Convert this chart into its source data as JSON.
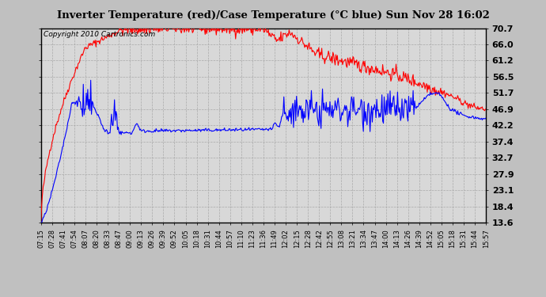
{
  "title": "Inverter Temperature (red)/Case Temperature (°C blue) Sun Nov 28 16:02",
  "copyright": "Copyright 2010 Cartronics.com",
  "yticks": [
    13.6,
    18.4,
    23.1,
    27.9,
    32.7,
    37.4,
    42.2,
    46.9,
    51.7,
    56.5,
    61.2,
    66.0,
    70.7
  ],
  "ymin": 13.6,
  "ymax": 70.7,
  "outer_bg": "#c0c0c0",
  "plot_bg": "#d8d8d8",
  "inner_bg": "#ffffff",
  "grid_color": "#aaaaaa",
  "red_color": "#ff0000",
  "blue_color": "#0000ff",
  "xtick_labels": [
    "07:15",
    "07:28",
    "07:41",
    "07:54",
    "08:07",
    "08:20",
    "08:33",
    "08:47",
    "09:00",
    "09:13",
    "09:26",
    "09:39",
    "09:52",
    "10:05",
    "10:18",
    "10:31",
    "10:44",
    "10:57",
    "11:10",
    "11:23",
    "11:36",
    "11:49",
    "12:02",
    "12:15",
    "12:28",
    "12:42",
    "12:55",
    "13:08",
    "13:21",
    "13:34",
    "13:47",
    "14:00",
    "14:13",
    "14:26",
    "14:39",
    "14:52",
    "15:05",
    "15:18",
    "15:31",
    "15:44",
    "15:57"
  ],
  "n_points": 600,
  "seed": 42
}
